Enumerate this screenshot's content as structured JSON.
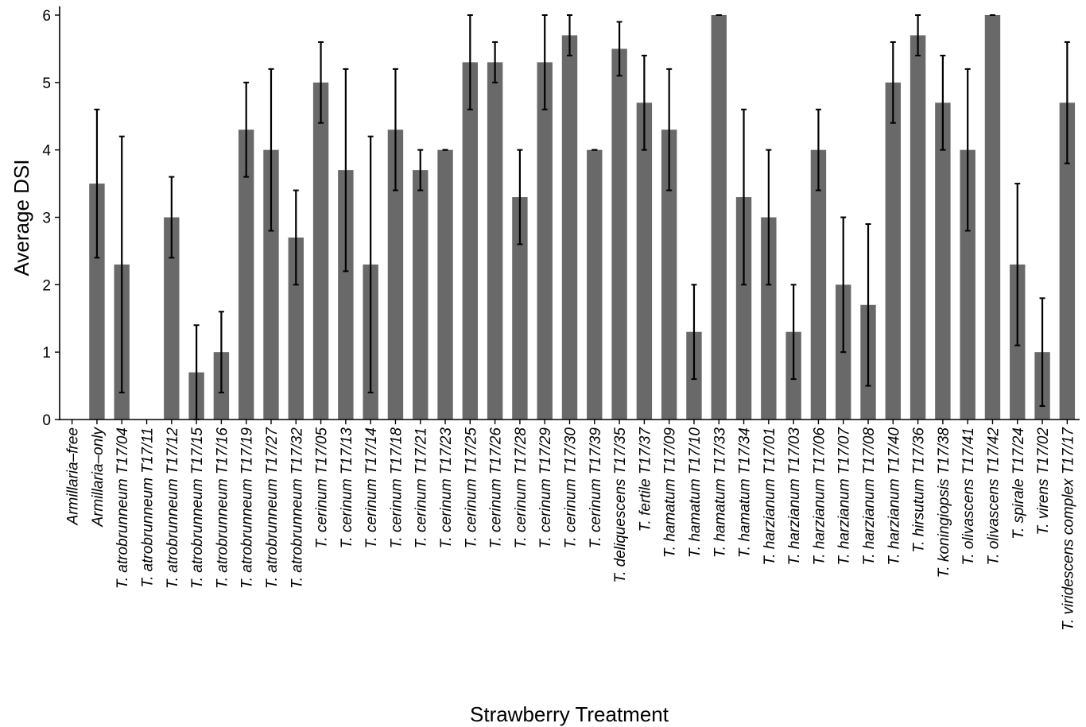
{
  "chart_data": {
    "type": "bar",
    "xlabel": "Strawberry Treatment",
    "ylabel": "Average DSI",
    "ylim": [
      0,
      6
    ],
    "yticks": [
      0,
      1,
      2,
      3,
      4,
      5,
      6
    ],
    "grid": false,
    "bar_color": "#696969",
    "error_bar_color": "#000000",
    "categories": [
      "Armillaria–free",
      "Armillaria–only",
      "T. atrobrunneum T17/04",
      "T. atrobrunneum T17/11",
      "T. atrobrunneum T17/12",
      "T. atrobrunneum T17/15",
      "T. atrobrunneum T17/16",
      "T. atrobrunneum T17/19",
      "T. atrobrunneum T17/27",
      "T. atrobrunneum T17/32",
      "T. cerinum T17/05",
      "T. cerinum T17/13",
      "T. cerinum T17/14",
      "T. cerinum T17/18",
      "T. cerinum T17/21",
      "T. cerinum T17/23",
      "T. cerinum T17/25",
      "T. cerinum T17/26",
      "T. cerinum T17/28",
      "T. cerinum T17/29",
      "T. cerinum T17/30",
      "T. cerinum T17/39",
      "T. deliquescens T17/35",
      "T. fertile T17/37",
      "T. hamatum T17/09",
      "T. hamatum T17/10",
      "T. hamatum T17/33",
      "T. hamatum T17/34",
      "T. harzianum T17/01",
      "T. harzianum T17/03",
      "T. harzianum T17/06",
      "T. harzianum T17/07",
      "T. harzianum T17/08",
      "T. harzianum T17/40",
      "T. hirsutum T17/36",
      "T. koningiopsis T17/38",
      "T. olivascens T17/41",
      "T. olivascens T17/42",
      "T. spirale T17/24",
      "T. virens T17/02",
      "T. viridescens complex T17/17"
    ],
    "values": [
      0,
      3.5,
      2.3,
      0,
      3.0,
      0.7,
      1.0,
      4.3,
      4.0,
      2.7,
      5.0,
      3.7,
      2.3,
      4.3,
      3.7,
      4.0,
      5.3,
      5.3,
      3.3,
      5.3,
      5.7,
      4.0,
      5.5,
      4.7,
      4.3,
      1.3,
      6.0,
      3.3,
      3.0,
      1.3,
      4.0,
      2.0,
      1.7,
      5.0,
      5.7,
      4.7,
      4.0,
      6.0,
      2.3,
      1.0,
      4.7
    ],
    "error_low": [
      null,
      2.4,
      0.4,
      null,
      2.4,
      0.0,
      0.4,
      3.6,
      2.8,
      2.0,
      4.4,
      2.2,
      0.4,
      3.4,
      3.4,
      4.0,
      4.6,
      5.0,
      2.6,
      4.6,
      5.4,
      4.0,
      5.1,
      4.0,
      3.4,
      0.6,
      6.0,
      2.0,
      2.0,
      0.6,
      3.4,
      1.0,
      0.5,
      4.4,
      5.4,
      4.0,
      2.8,
      6.0,
      1.1,
      0.2,
      3.8
    ],
    "error_high": [
      null,
      4.6,
      4.2,
      null,
      3.6,
      1.4,
      1.6,
      5.0,
      5.2,
      3.4,
      5.6,
      5.2,
      4.2,
      5.2,
      4.0,
      4.0,
      6.0,
      5.6,
      4.0,
      6.0,
      6.0,
      4.0,
      5.9,
      5.4,
      5.2,
      2.0,
      6.0,
      4.6,
      4.0,
      2.0,
      4.6,
      3.0,
      2.9,
      5.6,
      6.0,
      5.4,
      5.2,
      6.0,
      3.5,
      1.8,
      5.6
    ]
  }
}
